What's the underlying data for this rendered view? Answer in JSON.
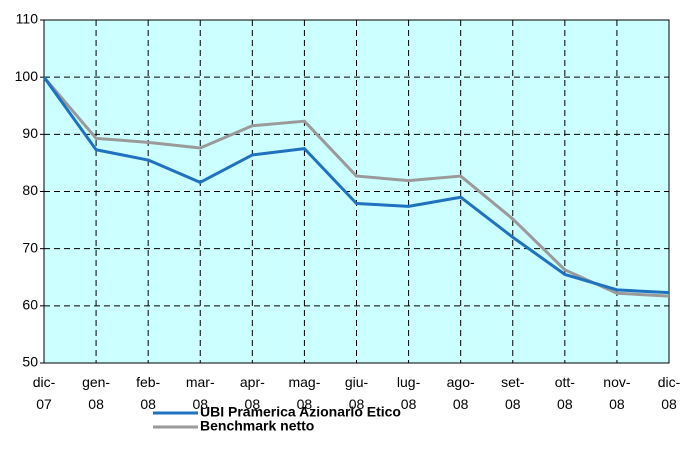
{
  "chart_data": {
    "type": "line",
    "categories": [
      "dic-07",
      "gen-08",
      "feb-08",
      "mar-08",
      "apr-08",
      "mag-08",
      "giu-08",
      "lug-08",
      "ago-08",
      "set-08",
      "ott-08",
      "nov-08",
      "dic-08"
    ],
    "series": [
      {
        "name": "UBI Pramerica Azionario Etico",
        "color": "#1f72c0",
        "values": [
          100,
          87.3,
          85.5,
          81.6,
          86.4,
          87.5,
          77.9,
          77.4,
          79.0,
          72.0,
          65.5,
          62.8,
          62.3
        ]
      },
      {
        "name": "Benchmark netto",
        "color": "#9a9a9a",
        "values": [
          100,
          89.3,
          88.6,
          87.6,
          91.5,
          92.3,
          82.7,
          81.9,
          82.7,
          75.2,
          66.3,
          62.2,
          61.7
        ]
      }
    ],
    "ylim": [
      50,
      110
    ],
    "yticks": [
      50,
      60,
      70,
      80,
      90,
      100,
      110
    ],
    "grid": true,
    "background": "#ccffff"
  }
}
